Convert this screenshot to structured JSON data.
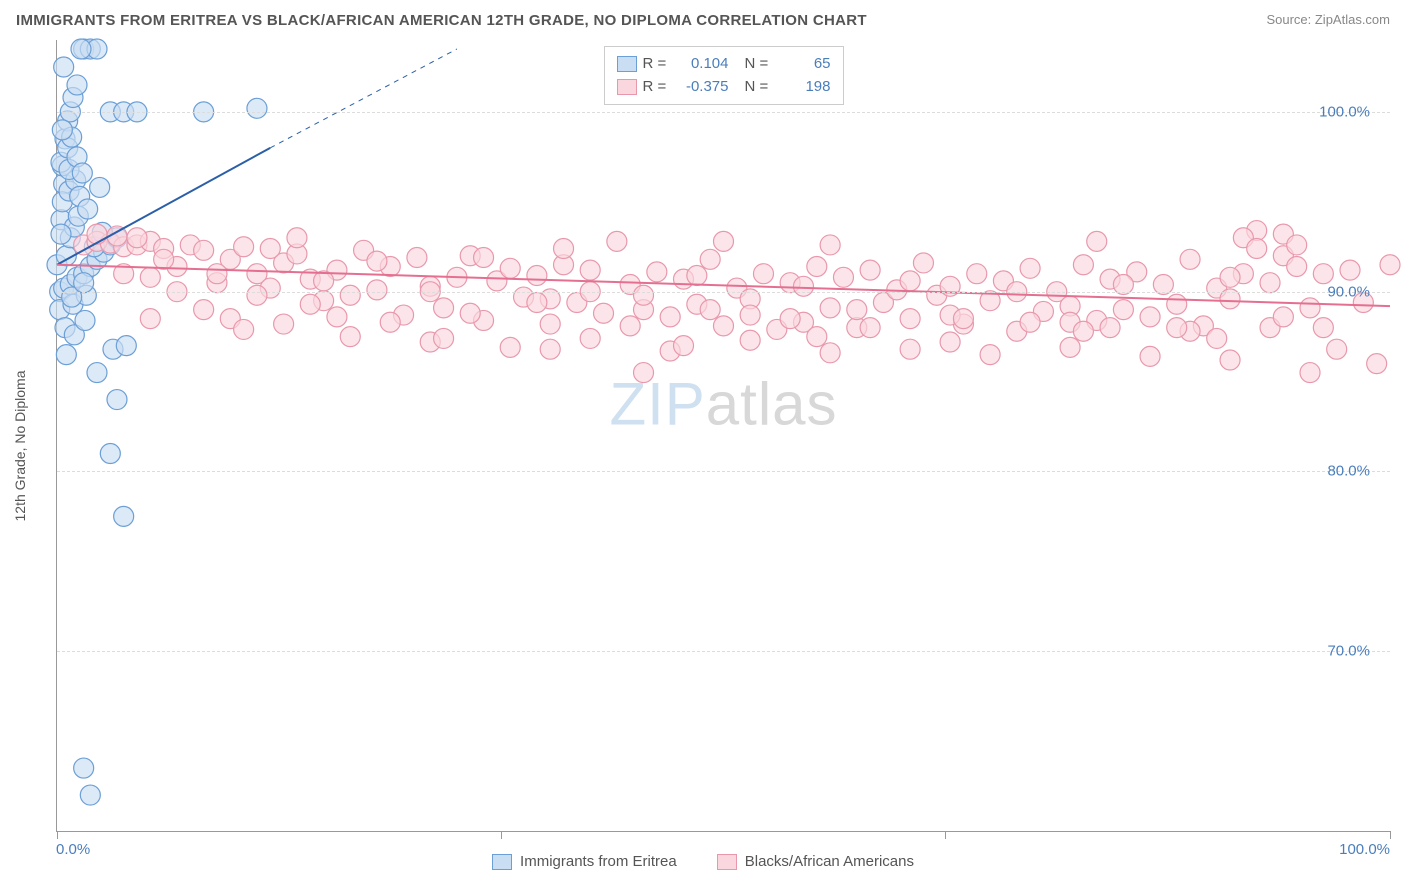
{
  "title": "IMMIGRANTS FROM ERITREA VS BLACK/AFRICAN AMERICAN 12TH GRADE, NO DIPLOMA CORRELATION CHART",
  "source_label": "Source: ",
  "source_name": "ZipAtlas.com",
  "ylabel": "12th Grade, No Diploma",
  "watermark_a": "ZIP",
  "watermark_b": "atlas",
  "chart": {
    "type": "scatter",
    "xlim": [
      0,
      100
    ],
    "ylim": [
      60,
      104
    ],
    "grid_color": "#dcdcdc",
    "axis_color": "#999999",
    "background_color": "#ffffff",
    "ytick_values": [
      70,
      80,
      90,
      100
    ],
    "ytick_labels": [
      "70.0%",
      "80.0%",
      "90.0%",
      "100.0%"
    ],
    "xtick_values": [
      0,
      33.3,
      66.6,
      100
    ],
    "xtick_label_left": "0.0%",
    "xtick_label_right": "100.0%",
    "marker_radius": 10,
    "marker_stroke_width": 1.2,
    "line_width": 2,
    "series": [
      {
        "key": "eritrea",
        "name": "Immigrants from Eritrea",
        "color_fill": "#c9ddf3",
        "color_stroke": "#6b9fd6",
        "line_color": "#2b5fa8",
        "R": "0.104",
        "N": "65",
        "trend": {
          "x1": 0,
          "y1": 91.5,
          "x2": 16,
          "y2": 98,
          "dash_extend_to_x": 30,
          "dash_extend_to_y": 103.5
        },
        "points": [
          [
            0,
            91.5
          ],
          [
            0.3,
            94
          ],
          [
            0.5,
            96
          ],
          [
            0.4,
            97
          ],
          [
            0.6,
            98.5
          ],
          [
            0.8,
            99.5
          ],
          [
            1.0,
            100
          ],
          [
            1.2,
            100.8
          ],
          [
            1.5,
            101.5
          ],
          [
            0.2,
            90
          ],
          [
            0.7,
            92
          ],
          [
            1.0,
            93
          ],
          [
            1.3,
            93.6
          ],
          [
            1.6,
            94.2
          ],
          [
            0.4,
            95
          ],
          [
            0.9,
            95.6
          ],
          [
            1.4,
            96.2
          ],
          [
            0.3,
            97.2
          ],
          [
            0.8,
            98
          ],
          [
            1.1,
            98.6
          ],
          [
            2,
            103.5
          ],
          [
            2.5,
            103.5
          ],
          [
            3,
            103.5
          ],
          [
            1.8,
            103.5
          ],
          [
            4,
            100
          ],
          [
            5,
            100
          ],
          [
            6,
            100
          ],
          [
            11,
            100
          ],
          [
            15,
            100.2
          ],
          [
            0.5,
            90.2
          ],
          [
            1,
            90.4
          ],
          [
            1.5,
            90.8
          ],
          [
            2,
            91
          ],
          [
            2.5,
            91.4
          ],
          [
            3,
            91.8
          ],
          [
            3.5,
            92.2
          ],
          [
            4,
            92.6
          ],
          [
            4.5,
            93
          ],
          [
            0.2,
            89
          ],
          [
            0.6,
            88
          ],
          [
            1.2,
            89.3
          ],
          [
            2.2,
            89.8
          ],
          [
            2.8,
            92.5
          ],
          [
            3.4,
            93.3
          ],
          [
            4.2,
            86.8
          ],
          [
            5.2,
            87
          ],
          [
            3.0,
            85.5
          ],
          [
            4.5,
            84
          ],
          [
            4,
            81
          ],
          [
            5,
            77.5
          ],
          [
            2,
            63.5
          ],
          [
            2.5,
            62
          ],
          [
            1.7,
            95.3
          ],
          [
            2.3,
            94.6
          ],
          [
            0.9,
            96.8
          ],
          [
            1.5,
            97.5
          ],
          [
            0.4,
            99
          ],
          [
            1.1,
            89.7
          ],
          [
            2.0,
            90.5
          ],
          [
            3.2,
            95.8
          ],
          [
            0.7,
            86.5
          ],
          [
            1.3,
            87.6
          ],
          [
            2.1,
            88.4
          ],
          [
            0.3,
            93.2
          ],
          [
            1.9,
            96.6
          ],
          [
            0.5,
            102.5
          ]
        ]
      },
      {
        "key": "black",
        "name": "Blacks/African Americans",
        "color_fill": "#fad7df",
        "color_stroke": "#e998ac",
        "line_color": "#e56f91",
        "R": "-0.375",
        "N": "198",
        "trend": {
          "x1": 0,
          "y1": 91.5,
          "x2": 100,
          "y2": 89.2
        },
        "points": [
          [
            2,
            92.6
          ],
          [
            3,
            92.8
          ],
          [
            4,
            92.7
          ],
          [
            5,
            92.5
          ],
          [
            6,
            92.6
          ],
          [
            7,
            92.8
          ],
          [
            8,
            92.4
          ],
          [
            3,
            93.2
          ],
          [
            4.5,
            93.1
          ],
          [
            6,
            93
          ],
          [
            5,
            91
          ],
          [
            7,
            90.8
          ],
          [
            9,
            91.4
          ],
          [
            10,
            92.6
          ],
          [
            11,
            92.3
          ],
          [
            12,
            90.5
          ],
          [
            13,
            91.8
          ],
          [
            14,
            92.5
          ],
          [
            15,
            91
          ],
          [
            16,
            90.2
          ],
          [
            17,
            91.6
          ],
          [
            18,
            92.1
          ],
          [
            19,
            90.7
          ],
          [
            20,
            89.5
          ],
          [
            21,
            91.2
          ],
          [
            22,
            89.8
          ],
          [
            23,
            92.3
          ],
          [
            24,
            90.1
          ],
          [
            25,
            91.4
          ],
          [
            26,
            88.7
          ],
          [
            27,
            91.9
          ],
          [
            28,
            90.3
          ],
          [
            29,
            89.1
          ],
          [
            30,
            90.8
          ],
          [
            31,
            92.0
          ],
          [
            32,
            88.4
          ],
          [
            33,
            90.6
          ],
          [
            34,
            91.3
          ],
          [
            35,
            89.7
          ],
          [
            36,
            90.9
          ],
          [
            37,
            88.2
          ],
          [
            38,
            91.5
          ],
          [
            39,
            89.4
          ],
          [
            40,
            90.0
          ],
          [
            41,
            88.8
          ],
          [
            42,
            92.8
          ],
          [
            43,
            90.4
          ],
          [
            44,
            89.0
          ],
          [
            45,
            91.1
          ],
          [
            46,
            88.6
          ],
          [
            47,
            90.7
          ],
          [
            48,
            89.3
          ],
          [
            49,
            91.8
          ],
          [
            50,
            88.1
          ],
          [
            51,
            90.2
          ],
          [
            52,
            89.6
          ],
          [
            53,
            91.0
          ],
          [
            54,
            87.9
          ],
          [
            55,
            90.5
          ],
          [
            56,
            88.3
          ],
          [
            57,
            91.4
          ],
          [
            58,
            89.1
          ],
          [
            59,
            90.8
          ],
          [
            60,
            88.0
          ],
          [
            61,
            91.2
          ],
          [
            62,
            89.4
          ],
          [
            63,
            90.1
          ],
          [
            64,
            88.5
          ],
          [
            65,
            91.6
          ],
          [
            66,
            89.8
          ],
          [
            67,
            90.3
          ],
          [
            68,
            88.2
          ],
          [
            69,
            91.0
          ],
          [
            70,
            89.5
          ],
          [
            71,
            90.6
          ],
          [
            72,
            87.8
          ],
          [
            73,
            91.3
          ],
          [
            74,
            88.9
          ],
          [
            75,
            90.0
          ],
          [
            76,
            89.2
          ],
          [
            77,
            91.5
          ],
          [
            78,
            88.4
          ],
          [
            79,
            90.7
          ],
          [
            80,
            89.0
          ],
          [
            81,
            91.1
          ],
          [
            82,
            88.6
          ],
          [
            83,
            90.4
          ],
          [
            84,
            89.3
          ],
          [
            85,
            91.8
          ],
          [
            86,
            88.1
          ],
          [
            87,
            90.2
          ],
          [
            88,
            89.6
          ],
          [
            89,
            91.0
          ],
          [
            90,
            93.4
          ],
          [
            91,
            90.5
          ],
          [
            92,
            92.0
          ],
          [
            93,
            91.4
          ],
          [
            94,
            89.1
          ],
          [
            95,
            88.0
          ],
          [
            96,
            86.8
          ],
          [
            97,
            91.2
          ],
          [
            98,
            89.4
          ],
          [
            99,
            86.0
          ],
          [
            100,
            91.5
          ],
          [
            9,
            90
          ],
          [
            11,
            89
          ],
          [
            13,
            88.5
          ],
          [
            15,
            89.8
          ],
          [
            17,
            88.2
          ],
          [
            19,
            89.3
          ],
          [
            22,
            87.5
          ],
          [
            25,
            88.3
          ],
          [
            28,
            87.2
          ],
          [
            31,
            88.8
          ],
          [
            34,
            86.9
          ],
          [
            37,
            89.6
          ],
          [
            40,
            87.4
          ],
          [
            43,
            88.1
          ],
          [
            46,
            86.7
          ],
          [
            49,
            89.0
          ],
          [
            52,
            87.3
          ],
          [
            55,
            88.5
          ],
          [
            58,
            86.6
          ],
          [
            61,
            88.0
          ],
          [
            64,
            86.8
          ],
          [
            67,
            88.7
          ],
          [
            70,
            86.5
          ],
          [
            73,
            88.3
          ],
          [
            76,
            86.9
          ],
          [
            79,
            88.0
          ],
          [
            82,
            86.4
          ],
          [
            85,
            87.8
          ],
          [
            88,
            86.2
          ],
          [
            91,
            88.0
          ],
          [
            94,
            85.5
          ],
          [
            8,
            91.8
          ],
          [
            12,
            91.0
          ],
          [
            16,
            92.4
          ],
          [
            20,
            90.6
          ],
          [
            24,
            91.7
          ],
          [
            28,
            90.0
          ],
          [
            32,
            91.9
          ],
          [
            36,
            89.4
          ],
          [
            40,
            91.2
          ],
          [
            44,
            89.8
          ],
          [
            48,
            90.9
          ],
          [
            52,
            88.7
          ],
          [
            56,
            90.3
          ],
          [
            60,
            89.0
          ],
          [
            64,
            90.6
          ],
          [
            68,
            88.5
          ],
          [
            72,
            90.0
          ],
          [
            76,
            88.3
          ],
          [
            80,
            90.4
          ],
          [
            84,
            88.0
          ],
          [
            88,
            90.8
          ],
          [
            92,
            88.6
          ],
          [
            44,
            85.5
          ],
          [
            50,
            92.8
          ],
          [
            7,
            88.5
          ],
          [
            14,
            87.9
          ],
          [
            21,
            88.6
          ],
          [
            29,
            87.4
          ],
          [
            37,
            86.8
          ],
          [
            47,
            87.0
          ],
          [
            57,
            87.5
          ],
          [
            67,
            87.2
          ],
          [
            77,
            87.8
          ],
          [
            87,
            87.4
          ],
          [
            18,
            93.0
          ],
          [
            38,
            92.4
          ],
          [
            58,
            92.6
          ],
          [
            78,
            92.8
          ],
          [
            89,
            93.0
          ],
          [
            90,
            92.4
          ],
          [
            92,
            93.2
          ],
          [
            93,
            92.6
          ],
          [
            95,
            91.0
          ]
        ]
      }
    ]
  },
  "stats_legend": {
    "rows": [
      {
        "R_label": "R =",
        "N_label": "N ="
      }
    ]
  }
}
